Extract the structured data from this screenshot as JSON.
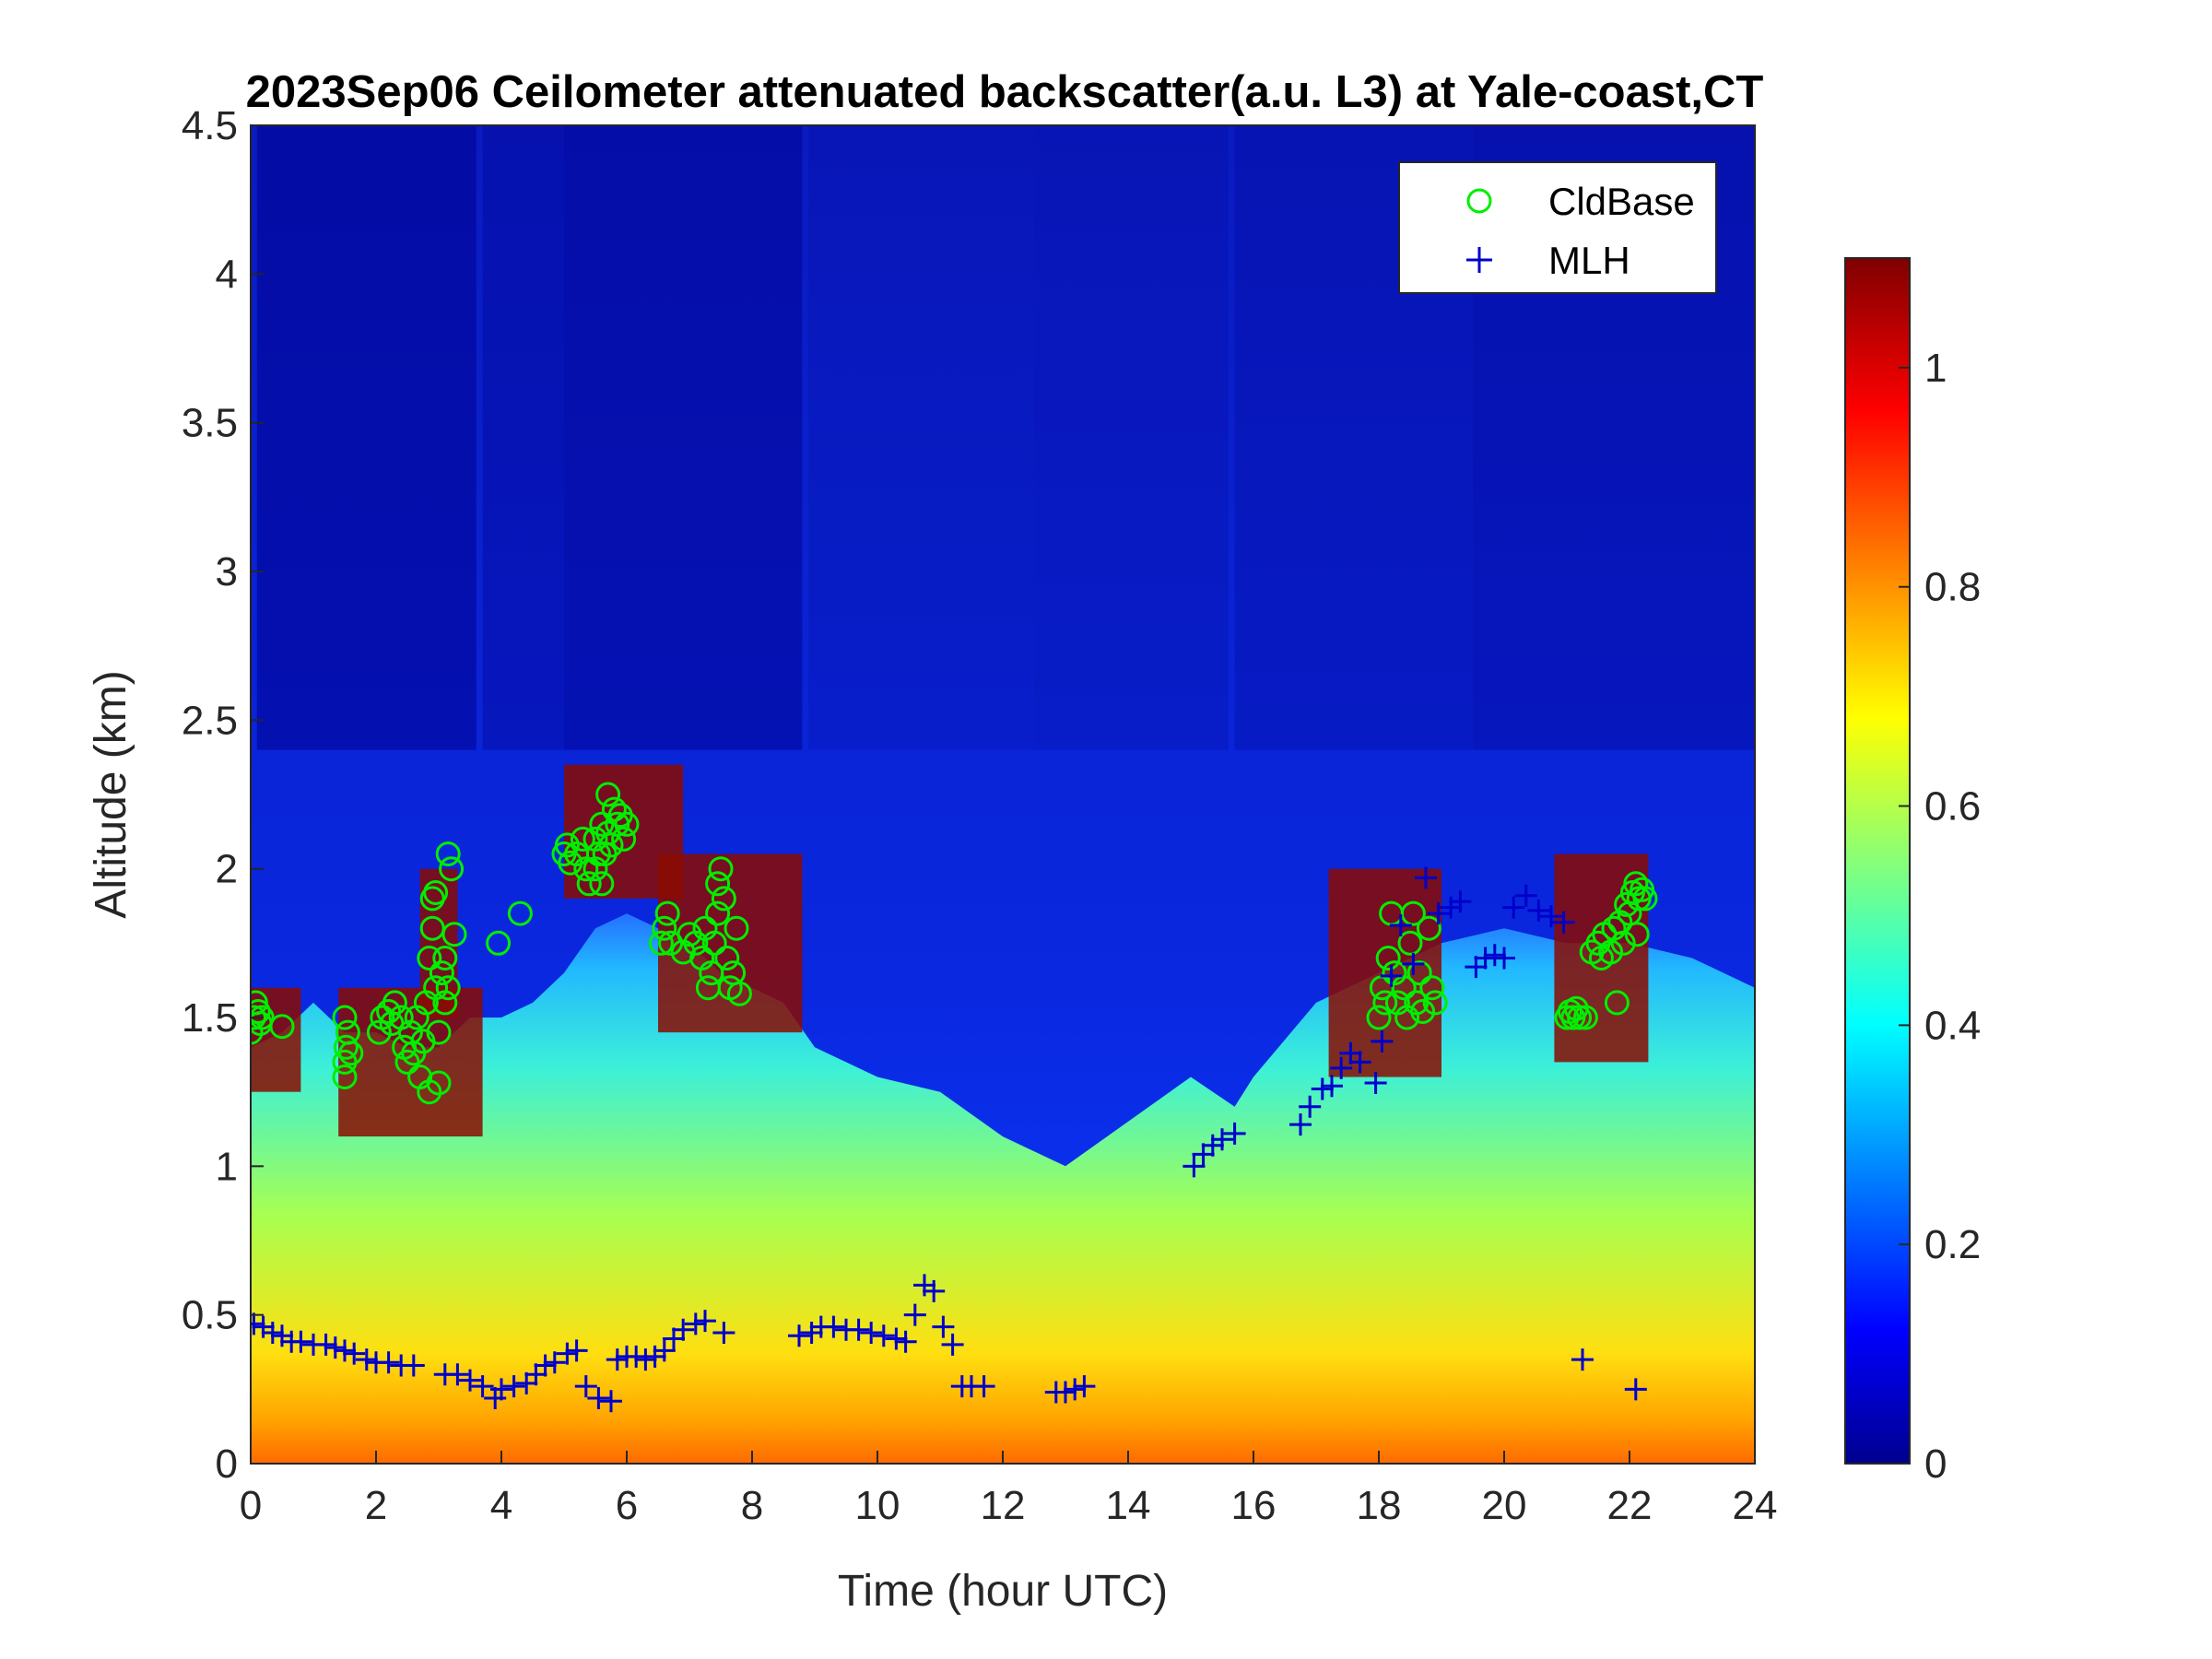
{
  "chart_data": {
    "type": "heatmap",
    "title": "2023Sep06 Ceilometer attenuated backscatter(a.u. L3) at Yale-coast,CT",
    "xlabel": "Time (hour UTC)",
    "ylabel": "Altitude (km)",
    "xlim": [
      0,
      24
    ],
    "ylim": [
      0,
      4.5
    ],
    "xticks": [
      0,
      2,
      4,
      6,
      8,
      10,
      12,
      14,
      16,
      18,
      20,
      22,
      24
    ],
    "yticks": [
      0,
      0.5,
      1,
      1.5,
      2,
      2.5,
      3,
      3.5,
      4,
      4.5
    ],
    "xtick_labels": [
      "0",
      "2",
      "4",
      "6",
      "8",
      "10",
      "12",
      "14",
      "16",
      "18",
      "20",
      "22",
      "24"
    ],
    "ytick_labels": [
      "0",
      "0.5",
      "1",
      "1.5",
      "2",
      "2.5",
      "3",
      "3.5",
      "4",
      "4.5"
    ],
    "colorbar": {
      "colormap": "jet",
      "lim": [
        0,
        1.1
      ],
      "ticks": [
        0,
        0.2,
        0.4,
        0.6,
        0.8,
        1
      ],
      "tick_labels": [
        "0",
        "0.2",
        "0.4",
        "0.6",
        "0.8",
        "1"
      ]
    },
    "legend": {
      "placement": "top-right",
      "entries": [
        {
          "label": "CldBase",
          "marker": "circle",
          "color": "#00ee00"
        },
        {
          "label": "MLH",
          "marker": "plus",
          "color": "#0000cc"
        }
      ]
    },
    "surface_blh_km": [
      [
        0.0,
        1.4
      ],
      [
        0.5,
        1.45
      ],
      [
        1.0,
        1.55
      ],
      [
        1.5,
        1.45
      ],
      [
        2.0,
        1.45
      ],
      [
        2.5,
        1.4
      ],
      [
        3.0,
        1.4
      ],
      [
        3.5,
        1.5
      ],
      [
        4.0,
        1.5
      ],
      [
        4.5,
        1.55
      ],
      [
        5.0,
        1.65
      ],
      [
        5.5,
        1.8
      ],
      [
        6.0,
        1.85
      ],
      [
        6.5,
        1.8
      ],
      [
        7.0,
        1.75
      ],
      [
        7.5,
        1.65
      ],
      [
        8.0,
        1.6
      ],
      [
        8.5,
        1.55
      ],
      [
        9.0,
        1.4
      ],
      [
        10.0,
        1.3
      ],
      [
        11.0,
        1.25
      ],
      [
        12.0,
        1.1
      ],
      [
        13.0,
        1.0
      ],
      [
        14.0,
        1.15
      ],
      [
        15.0,
        1.3
      ],
      [
        15.7,
        1.2
      ],
      [
        16.0,
        1.3
      ],
      [
        17.0,
        1.55
      ],
      [
        18.0,
        1.65
      ],
      [
        19.0,
        1.75
      ],
      [
        20.0,
        1.8
      ],
      [
        21.0,
        1.75
      ],
      [
        22.0,
        1.75
      ],
      [
        23.0,
        1.7
      ],
      [
        24.0,
        1.6
      ]
    ],
    "cloud_layers": [
      {
        "x0": 0.0,
        "x1": 0.8,
        "y0": 1.25,
        "y1": 1.6
      },
      {
        "x0": 1.4,
        "x1": 3.7,
        "y0": 1.1,
        "y1": 1.6
      },
      {
        "x0": 2.7,
        "x1": 3.3,
        "y0": 1.5,
        "y1": 2.0
      },
      {
        "x0": 5.0,
        "x1": 6.9,
        "y0": 1.9,
        "y1": 2.35
      },
      {
        "x0": 6.5,
        "x1": 8.8,
        "y0": 1.45,
        "y1": 2.05
      },
      {
        "x0": 17.2,
        "x1": 19.0,
        "y0": 1.3,
        "y1": 2.0
      },
      {
        "x0": 20.8,
        "x1": 22.3,
        "y0": 1.35,
        "y1": 2.05
      }
    ],
    "series": [
      {
        "name": "CldBase",
        "marker": "circle",
        "points": [
          [
            0.0,
            1.45
          ],
          [
            0.05,
            1.5
          ],
          [
            0.08,
            1.55
          ],
          [
            0.12,
            1.52
          ],
          [
            0.15,
            1.48
          ],
          [
            0.18,
            1.5
          ],
          [
            0.5,
            1.47
          ],
          [
            1.5,
            1.3
          ],
          [
            1.5,
            1.35
          ],
          [
            1.52,
            1.4
          ],
          [
            1.55,
            1.45
          ],
          [
            1.5,
            1.5
          ],
          [
            1.6,
            1.38
          ],
          [
            2.05,
            1.45
          ],
          [
            2.1,
            1.5
          ],
          [
            2.2,
            1.52
          ],
          [
            2.25,
            1.48
          ],
          [
            2.3,
            1.55
          ],
          [
            2.4,
            1.5
          ],
          [
            2.45,
            1.4
          ],
          [
            2.5,
            1.35
          ],
          [
            2.55,
            1.45
          ],
          [
            2.6,
            1.38
          ],
          [
            2.65,
            1.5
          ],
          [
            2.7,
            1.3
          ],
          [
            2.75,
            1.42
          ],
          [
            2.8,
            1.55
          ],
          [
            2.85,
            1.25
          ],
          [
            2.85,
            1.7
          ],
          [
            2.9,
            1.8
          ],
          [
            2.9,
            1.9
          ],
          [
            2.95,
            1.92
          ],
          [
            2.95,
            1.6
          ],
          [
            3.0,
            1.28
          ],
          [
            3.0,
            1.45
          ],
          [
            3.05,
            1.65
          ],
          [
            3.1,
            1.7
          ],
          [
            3.1,
            1.55
          ],
          [
            3.15,
            1.6
          ],
          [
            3.15,
            2.05
          ],
          [
            3.2,
            2.0
          ],
          [
            3.25,
            1.78
          ],
          [
            3.95,
            1.75
          ],
          [
            4.3,
            1.85
          ],
          [
            5.0,
            2.05
          ],
          [
            5.05,
            2.08
          ],
          [
            5.1,
            2.02
          ],
          [
            5.2,
            2.05
          ],
          [
            5.3,
            2.1
          ],
          [
            5.35,
            2.0
          ],
          [
            5.4,
            1.95
          ],
          [
            5.5,
            2.1
          ],
          [
            5.55,
            2.05
          ],
          [
            5.6,
            2.15
          ],
          [
            5.65,
            2.05
          ],
          [
            5.7,
            2.12
          ],
          [
            5.75,
            2.08
          ],
          [
            5.8,
            2.2
          ],
          [
            5.85,
            2.15
          ],
          [
            5.9,
            2.18
          ],
          [
            5.95,
            2.1
          ],
          [
            6.0,
            2.15
          ],
          [
            5.5,
            2.0
          ],
          [
            5.6,
            1.95
          ],
          [
            5.7,
            2.25
          ],
          [
            6.55,
            1.75
          ],
          [
            6.6,
            1.8
          ],
          [
            6.65,
            1.85
          ],
          [
            6.7,
            1.75
          ],
          [
            6.9,
            1.72
          ],
          [
            7.0,
            1.78
          ],
          [
            7.1,
            1.75
          ],
          [
            7.2,
            1.7
          ],
          [
            7.25,
            1.8
          ],
          [
            7.3,
            1.6
          ],
          [
            7.35,
            1.65
          ],
          [
            7.4,
            1.75
          ],
          [
            7.45,
            1.85
          ],
          [
            7.45,
            1.95
          ],
          [
            7.5,
            2.0
          ],
          [
            7.55,
            1.9
          ],
          [
            7.6,
            1.7
          ],
          [
            7.65,
            1.6
          ],
          [
            7.7,
            1.65
          ],
          [
            7.75,
            1.8
          ],
          [
            7.8,
            1.58
          ],
          [
            18.0,
            1.5
          ],
          [
            18.05,
            1.6
          ],
          [
            18.1,
            1.55
          ],
          [
            18.15,
            1.7
          ],
          [
            18.2,
            1.85
          ],
          [
            18.25,
            1.65
          ],
          [
            18.3,
            1.55
          ],
          [
            18.4,
            1.6
          ],
          [
            18.45,
            1.5
          ],
          [
            18.5,
            1.75
          ],
          [
            18.55,
            1.85
          ],
          [
            18.6,
            1.55
          ],
          [
            18.65,
            1.65
          ],
          [
            18.7,
            1.52
          ],
          [
            18.8,
            1.8
          ],
          [
            18.85,
            1.6
          ],
          [
            18.9,
            1.55
          ],
          [
            21.0,
            1.5
          ],
          [
            21.05,
            1.52
          ],
          [
            21.1,
            1.5
          ],
          [
            21.15,
            1.53
          ],
          [
            21.2,
            1.5
          ],
          [
            21.3,
            1.5
          ],
          [
            21.4,
            1.72
          ],
          [
            21.5,
            1.75
          ],
          [
            21.55,
            1.7
          ],
          [
            21.6,
            1.78
          ],
          [
            21.7,
            1.72
          ],
          [
            21.75,
            1.8
          ],
          [
            21.8,
            1.55
          ],
          [
            21.85,
            1.82
          ],
          [
            21.9,
            1.75
          ],
          [
            21.95,
            1.88
          ],
          [
            22.0,
            1.85
          ],
          [
            22.05,
            1.92
          ],
          [
            22.1,
            1.95
          ],
          [
            22.12,
            1.78
          ],
          [
            22.15,
            1.9
          ],
          [
            22.2,
            1.93
          ],
          [
            22.25,
            1.9
          ]
        ]
      },
      {
        "name": "MLH",
        "marker": "plus",
        "points": [
          [
            0.05,
            0.47
          ],
          [
            0.2,
            0.46
          ],
          [
            0.35,
            0.44
          ],
          [
            0.5,
            0.43
          ],
          [
            0.65,
            0.41
          ],
          [
            0.8,
            0.41
          ],
          [
            1.0,
            0.4
          ],
          [
            1.2,
            0.4
          ],
          [
            1.35,
            0.39
          ],
          [
            1.5,
            0.38
          ],
          [
            1.65,
            0.37
          ],
          [
            1.85,
            0.35
          ],
          [
            2.0,
            0.34
          ],
          [
            2.2,
            0.34
          ],
          [
            2.4,
            0.33
          ],
          [
            2.6,
            0.33
          ],
          [
            3.1,
            0.3
          ],
          [
            3.3,
            0.3
          ],
          [
            3.5,
            0.28
          ],
          [
            3.7,
            0.26
          ],
          [
            3.9,
            0.22
          ],
          [
            4.0,
            0.25
          ],
          [
            4.2,
            0.26
          ],
          [
            4.4,
            0.27
          ],
          [
            4.55,
            0.3
          ],
          [
            4.7,
            0.33
          ],
          [
            4.85,
            0.34
          ],
          [
            5.05,
            0.37
          ],
          [
            5.2,
            0.38
          ],
          [
            5.35,
            0.26
          ],
          [
            5.55,
            0.22
          ],
          [
            5.75,
            0.21
          ],
          [
            5.85,
            0.35
          ],
          [
            6.0,
            0.36
          ],
          [
            6.15,
            0.36
          ],
          [
            6.3,
            0.35
          ],
          [
            6.45,
            0.36
          ],
          [
            6.6,
            0.38
          ],
          [
            6.75,
            0.42
          ],
          [
            6.9,
            0.45
          ],
          [
            7.1,
            0.47
          ],
          [
            7.25,
            0.48
          ],
          [
            7.55,
            0.44
          ],
          [
            8.75,
            0.43
          ],
          [
            8.95,
            0.44
          ],
          [
            9.1,
            0.46
          ],
          [
            9.3,
            0.46
          ],
          [
            9.5,
            0.45
          ],
          [
            9.7,
            0.45
          ],
          [
            9.9,
            0.44
          ],
          [
            10.1,
            0.43
          ],
          [
            10.3,
            0.42
          ],
          [
            10.45,
            0.41
          ],
          [
            10.6,
            0.5
          ],
          [
            10.75,
            0.6
          ],
          [
            10.9,
            0.58
          ],
          [
            11.05,
            0.46
          ],
          [
            11.2,
            0.4
          ],
          [
            11.35,
            0.26
          ],
          [
            11.5,
            0.26
          ],
          [
            11.7,
            0.26
          ],
          [
            12.85,
            0.24
          ],
          [
            13.0,
            0.24
          ],
          [
            13.15,
            0.25
          ],
          [
            13.3,
            0.26
          ],
          [
            15.05,
            1.0
          ],
          [
            15.2,
            1.04
          ],
          [
            15.35,
            1.07
          ],
          [
            15.5,
            1.09
          ],
          [
            15.7,
            1.11
          ],
          [
            16.75,
            1.14
          ],
          [
            16.9,
            1.2
          ],
          [
            17.1,
            1.26
          ],
          [
            17.25,
            1.27
          ],
          [
            17.4,
            1.33
          ],
          [
            17.55,
            1.38
          ],
          [
            17.7,
            1.35
          ],
          [
            17.95,
            1.28
          ],
          [
            18.05,
            1.42
          ],
          [
            18.2,
            1.64
          ],
          [
            18.35,
            1.81
          ],
          [
            18.55,
            1.68
          ],
          [
            18.75,
            1.97
          ],
          [
            18.95,
            1.85
          ],
          [
            19.15,
            1.87
          ],
          [
            19.3,
            1.89
          ],
          [
            19.55,
            1.67
          ],
          [
            19.7,
            1.7
          ],
          [
            19.85,
            1.71
          ],
          [
            20.0,
            1.7
          ],
          [
            20.15,
            1.87
          ],
          [
            20.35,
            1.91
          ],
          [
            20.55,
            1.86
          ],
          [
            20.75,
            1.84
          ],
          [
            20.95,
            1.82
          ],
          [
            21.25,
            0.35
          ],
          [
            22.1,
            0.25
          ]
        ]
      }
    ]
  }
}
